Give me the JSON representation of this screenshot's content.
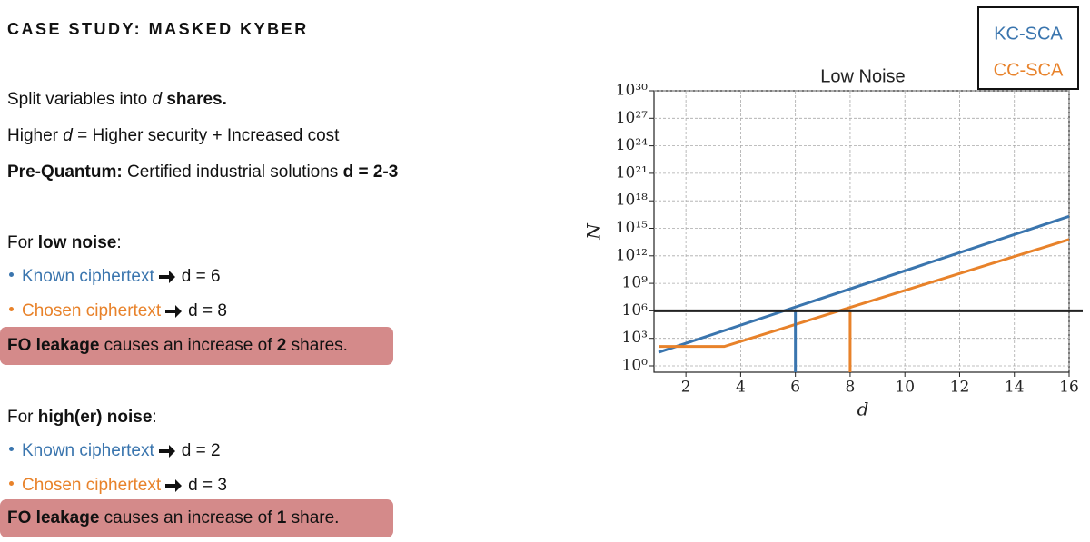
{
  "slide": {
    "title": "CASE STUDY: MASKED KYBER",
    "line1": [
      "Split variables into ",
      "d",
      " shares."
    ],
    "line2": [
      "Higher ",
      "d",
      " = Higher security + Increased cost"
    ],
    "line3": [
      "Pre-Quantum:",
      " Certified industrial solutions ",
      "d = 2-3"
    ],
    "low": {
      "heading": [
        "For ",
        "low noise",
        ":"
      ],
      "known": [
        "Known ciphertext",
        "d = 6"
      ],
      "chosen": [
        "Chosen ciphertext",
        "d = 8"
      ],
      "note": [
        "FO leakage",
        " causes an increase of ",
        "2",
        " shares."
      ]
    },
    "high": {
      "heading": [
        "For ",
        "high(er) noise",
        ":"
      ],
      "known": [
        "Known ciphertext",
        "d = 2"
      ],
      "chosen": [
        "Chosen ciphertext",
        "d = 3"
      ],
      "note": [
        "FO leakage",
        " causes an increase of ",
        "1",
        " share."
      ]
    }
  },
  "chart_data": {
    "type": "line",
    "title": "Low Noise",
    "xlabel": "d",
    "ylabel": "N",
    "log_y": true,
    "grid": true,
    "series": [
      {
        "name": "KC-SCA",
        "color": "#3a75ae",
        "x": [
          1,
          16
        ],
        "values": [
          30,
          20000000000000000
        ]
      },
      {
        "name": "CC-SCA",
        "color": "#e8822a",
        "x": [
          1,
          3.4,
          16
        ],
        "values": [
          130,
          130,
          60000000000000
        ]
      }
    ],
    "hline": 1000000,
    "vlines": [
      {
        "x": 6,
        "color": "#3a75ae"
      },
      {
        "x": 8,
        "color": "#e8822a"
      }
    ],
    "xlim": [
      1,
      16
    ],
    "xticks": [
      2,
      4,
      6,
      8,
      10,
      12,
      14,
      16
    ],
    "ylim": [
      1,
      1e+30
    ],
    "yticks": [
      {
        "value": 1,
        "label": "10⁰"
      },
      {
        "value": 1000,
        "label": "10³"
      },
      {
        "value": 1000000,
        "label": "10⁶"
      },
      {
        "value": 1000000000,
        "label": "10⁹"
      },
      {
        "value": 1000000000000.0,
        "label": "10¹²"
      },
      {
        "value": 1000000000000000.0,
        "label": "10¹⁵"
      },
      {
        "value": 1e+18,
        "label": "10¹⁸"
      },
      {
        "value": 1e+21,
        "label": "10²¹"
      },
      {
        "value": 1e+24,
        "label": "10²⁴"
      },
      {
        "value": 1e+27,
        "label": "10²⁷"
      },
      {
        "value": 1e+30,
        "label": "10³⁰"
      }
    ],
    "legend": "top-right"
  }
}
